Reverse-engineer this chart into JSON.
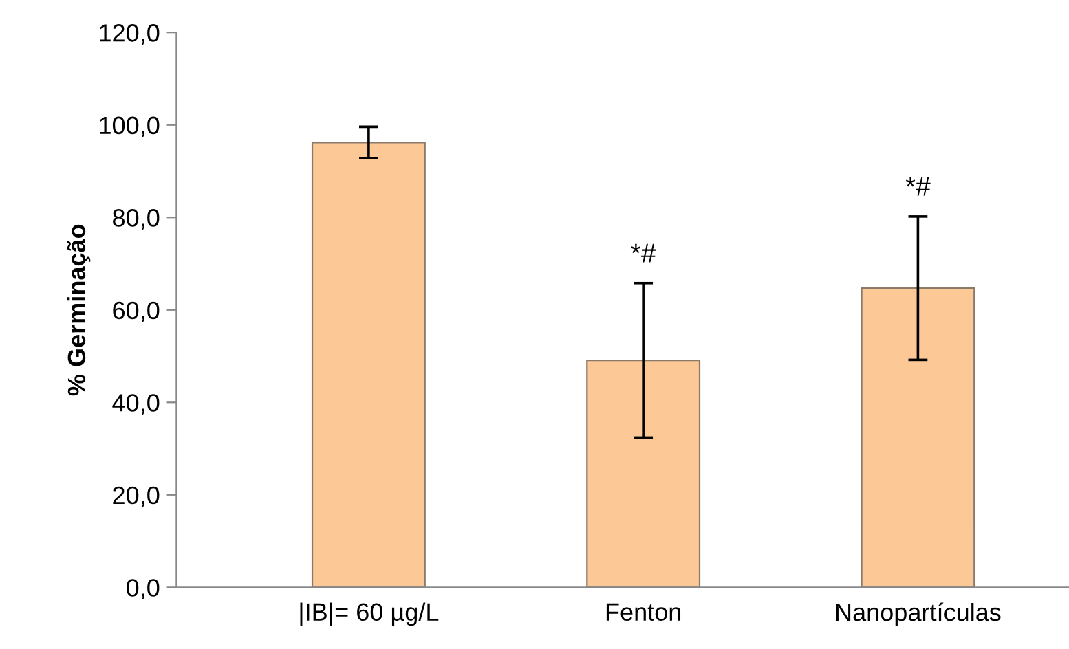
{
  "chart_data": {
    "type": "bar",
    "ylabel": "% Germinação",
    "categories": [
      "|IB|= 60 µg/L",
      "Fenton",
      "Nanopartículas"
    ],
    "values": [
      96.2,
      49.1,
      64.7
    ],
    "errors": [
      3.4,
      16.7,
      15.5
    ],
    "color": "#fcc896",
    "ylim": [
      0,
      120
    ],
    "yticks": [
      {
        "value": 0,
        "label": "0,0"
      },
      {
        "value": 20,
        "label": "20,0"
      },
      {
        "value": 40,
        "label": "40,0"
      },
      {
        "value": 60,
        "label": "60,0"
      },
      {
        "value": 80,
        "label": "80,0"
      },
      {
        "value": 100,
        "label": "100,0"
      },
      {
        "value": 120,
        "label": "120,0"
      }
    ],
    "annotations": [
      {
        "text": "*#",
        "x": "Fenton",
        "y": 65.8
      },
      {
        "text": "*#",
        "x": "Nanopartículas",
        "y": 80.2
      }
    ],
    "grid": false,
    "legend": false
  }
}
